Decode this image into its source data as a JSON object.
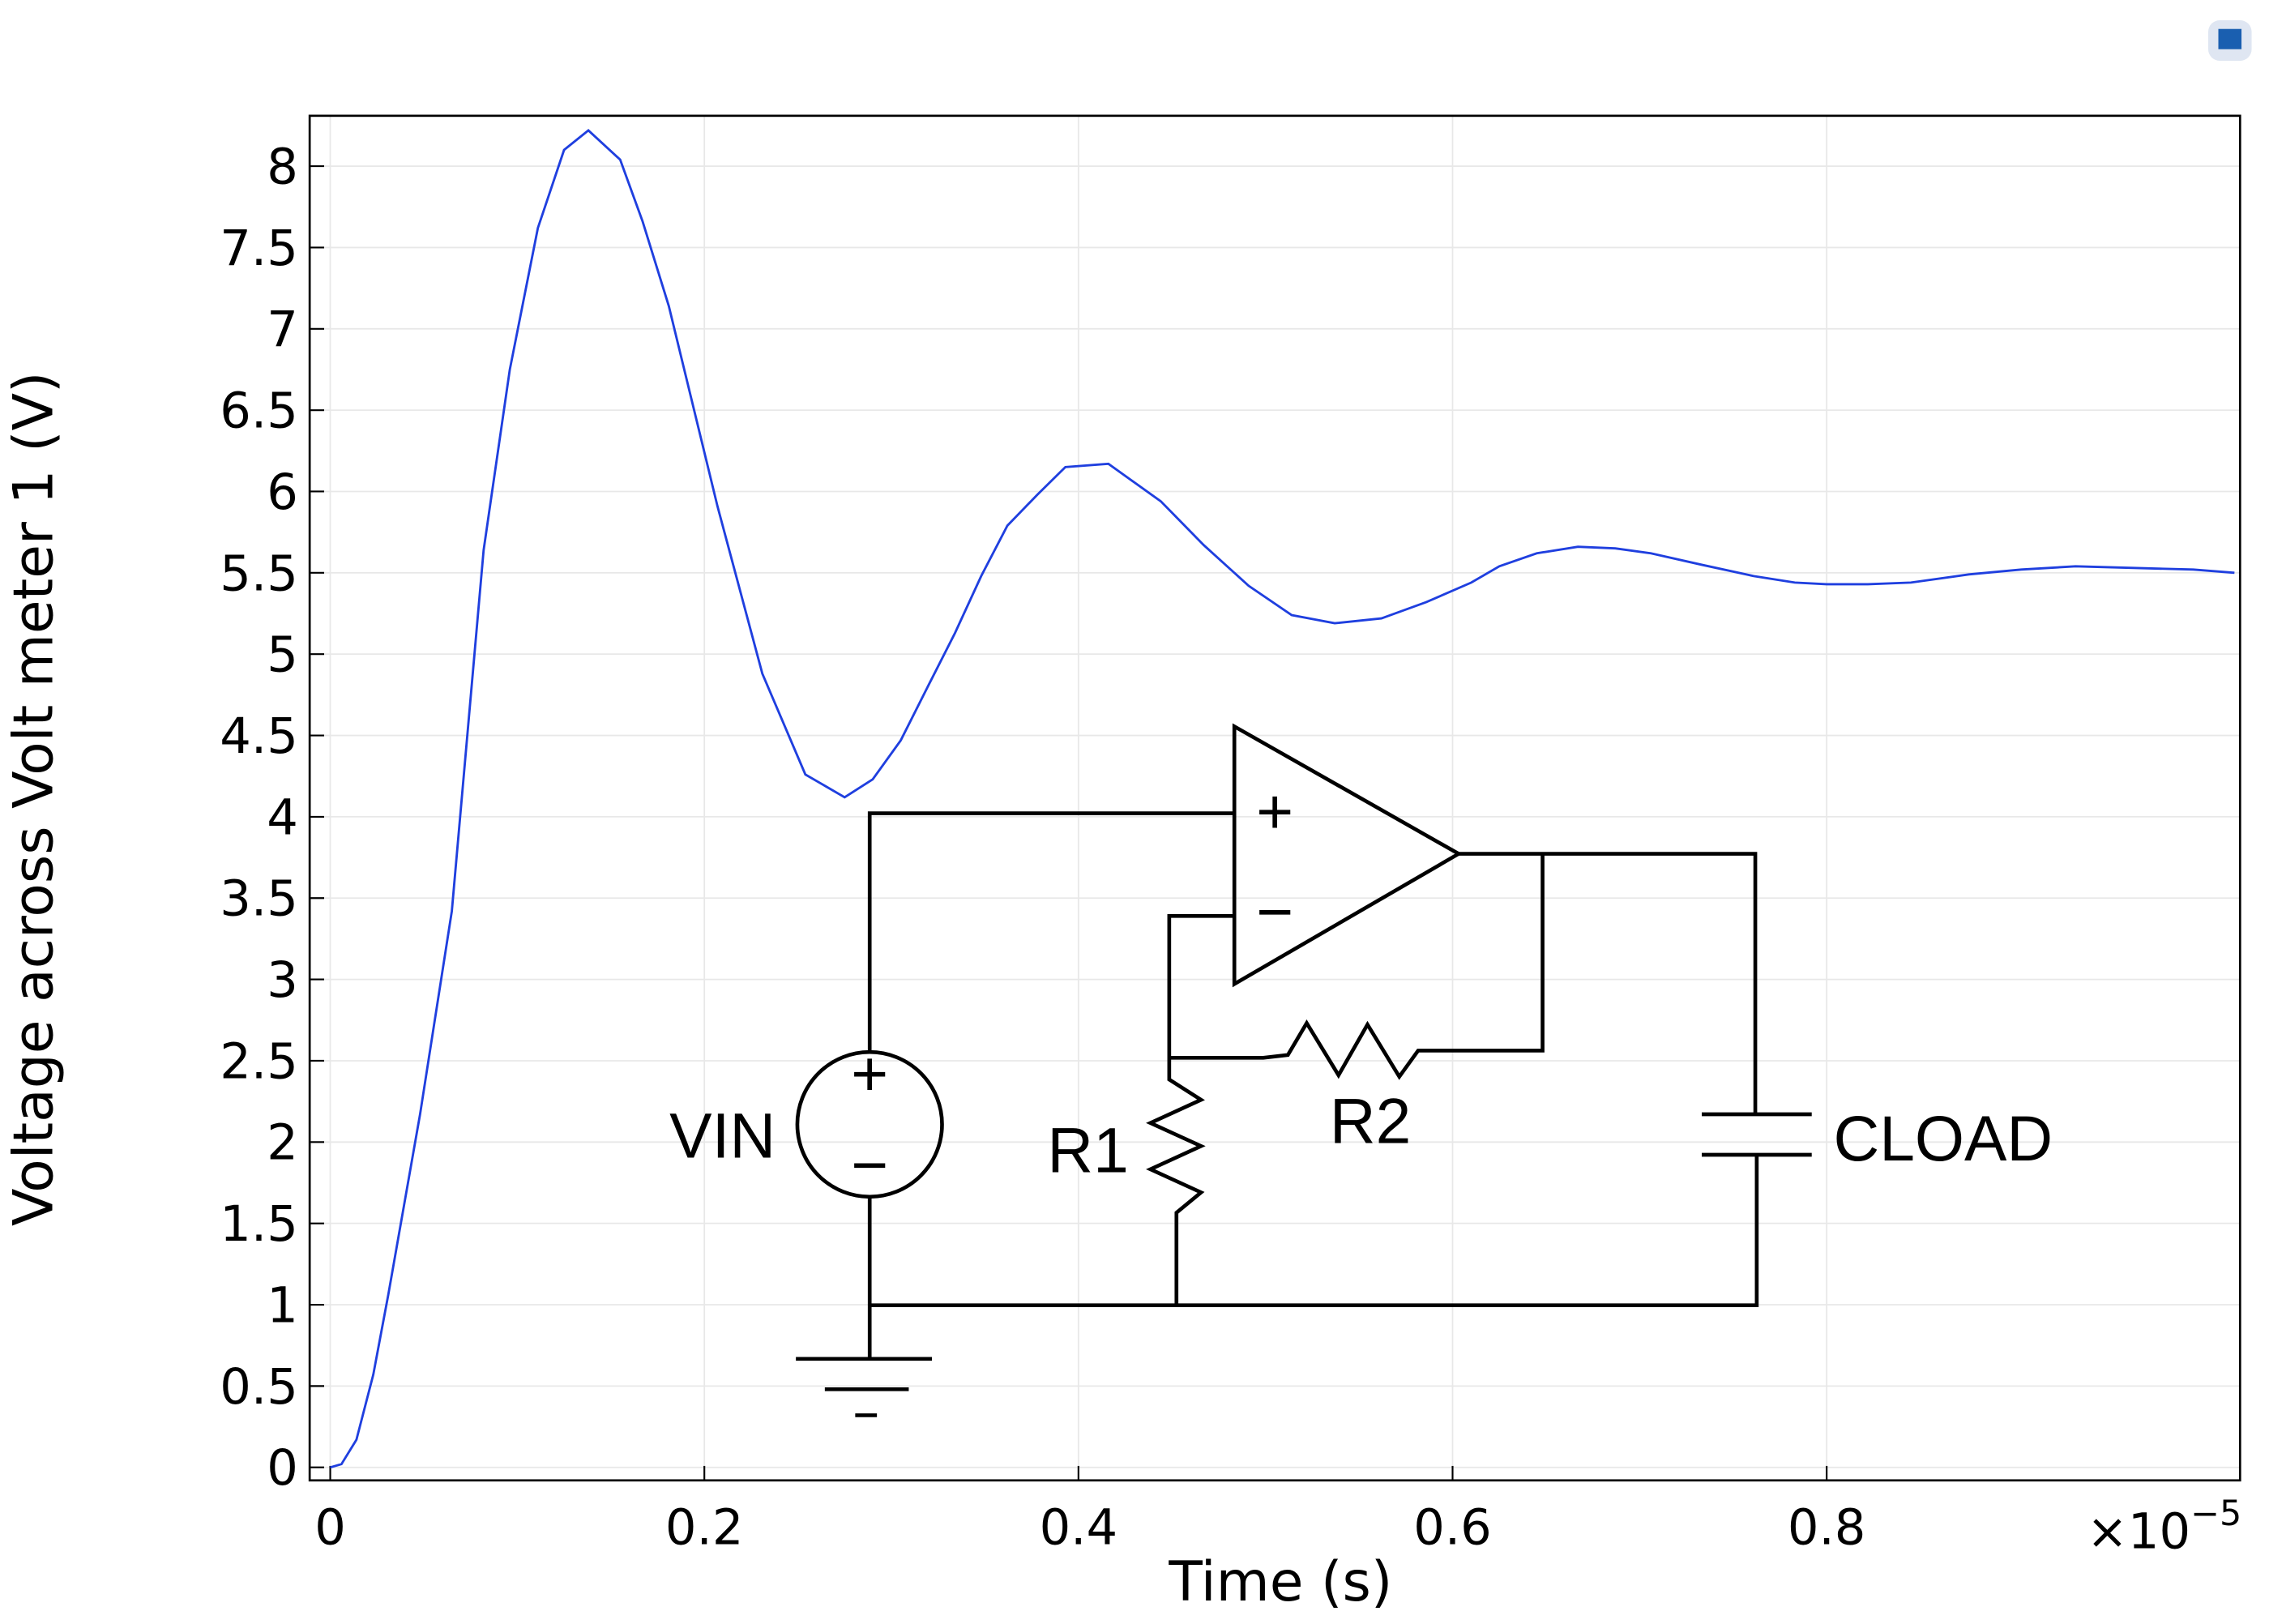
{
  "chart_data": {
    "type": "line",
    "xlabel": "Time (s)",
    "ylabel": "Voltage across Volt meter 1 (V)",
    "x_multiplier": {
      "base": "×10",
      "exponent": "−5"
    },
    "x": [
      0,
      0.006,
      0.014,
      0.023,
      0.031,
      0.048,
      0.065,
      0.082,
      0.096,
      0.111,
      0.125,
      0.138,
      0.155,
      0.167,
      0.181,
      0.207,
      0.231,
      0.254,
      0.275,
      0.29,
      0.305,
      0.319,
      0.334,
      0.348,
      0.362,
      0.378,
      0.393,
      0.416,
      0.444,
      0.467,
      0.491,
      0.514,
      0.537,
      0.562,
      0.586,
      0.61,
      0.625,
      0.645,
      0.667,
      0.687,
      0.706,
      0.733,
      0.761,
      0.783,
      0.8,
      0.822,
      0.845,
      0.876,
      0.904,
      0.933,
      0.964,
      0.996,
      1.018
    ],
    "series": [
      {
        "color": "#1f3fdf",
        "values": [
          0,
          0.02,
          0.17,
          0.57,
          1.06,
          2.17,
          3.42,
          5.64,
          6.75,
          7.62,
          8.1,
          8.22,
          8.04,
          7.66,
          7.14,
          5.91,
          4.88,
          4.26,
          4.12,
          4.23,
          4.47,
          4.79,
          5.13,
          5.48,
          5.79,
          5.98,
          6.15,
          6.17,
          5.94,
          5.67,
          5.42,
          5.24,
          5.19,
          5.22,
          5.32,
          5.44,
          5.54,
          5.62,
          5.66,
          5.65,
          5.62,
          5.55,
          5.48,
          5.44,
          5.43,
          5.43,
          5.44,
          5.49,
          5.52,
          5.54,
          5.53,
          5.52,
          5.5
        ]
      }
    ],
    "xlim": [
      -0.011,
      1.021
    ],
    "ylim": [
      -0.08,
      8.31
    ],
    "xticks": [
      0,
      0.2,
      0.4,
      0.6,
      0.8
    ],
    "yticks": [
      0,
      0.5,
      1,
      1.5,
      2,
      2.5,
      3,
      3.5,
      4,
      4.5,
      5,
      5.5,
      6,
      6.5,
      7,
      7.5,
      8
    ],
    "grid": true
  },
  "circuit": {
    "vin": "VIN",
    "r1": "R1",
    "r2": "R2",
    "cload": "CLOAD",
    "opamp_plus": "+",
    "opamp_minus": "−",
    "source_plus": "+",
    "source_minus": "−"
  }
}
